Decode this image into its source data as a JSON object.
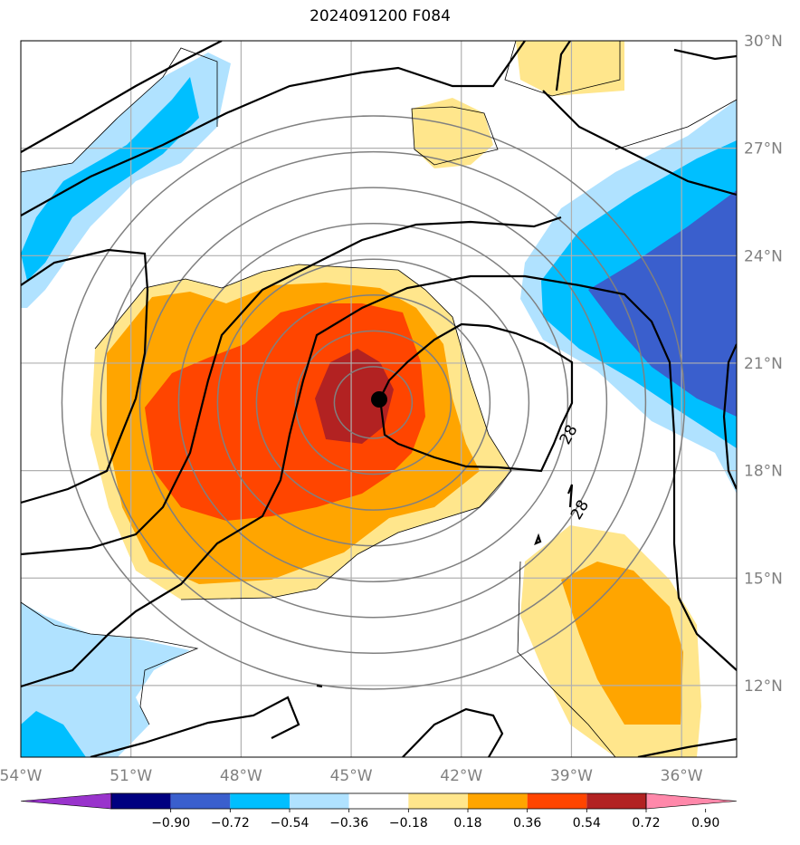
{
  "title": "2024091200 F084",
  "chart_data": {
    "type": "heatmap",
    "title": "2024091200 F084",
    "map": {
      "lon_range": [
        -54,
        -34.5
      ],
      "lat_range": [
        10,
        30
      ],
      "lon_ticks": [
        -54,
        -51,
        -48,
        -45,
        -42,
        -39,
        -36
      ],
      "lon_tick_labels": [
        "54°W",
        "51°W",
        "48°W",
        "45°W",
        "42°W",
        "39°W",
        "36°W"
      ],
      "lat_ticks": [
        12,
        15,
        18,
        21,
        24,
        27,
        30
      ],
      "lat_tick_labels": [
        "12°N",
        "15°N",
        "18°N",
        "21°N",
        "24°N",
        "27°N",
        "30°N"
      ],
      "grid": true,
      "storm_center": {
        "lon": -44.4,
        "lat": 19.9
      },
      "range_rings_deg": [
        1,
        2,
        3,
        4,
        5,
        6,
        7,
        8
      ]
    },
    "colorbar": {
      "position": "bottom",
      "extend": "both",
      "levels": [
        -0.9,
        -0.72,
        -0.54,
        -0.36,
        -0.18,
        0.18,
        0.36,
        0.54,
        0.72,
        0.9
      ],
      "tick_labels": [
        "−0.90",
        "−0.72",
        "−0.54",
        "−0.36",
        "−0.18",
        "0.18",
        "0.36",
        "0.54",
        "0.72",
        "0.90"
      ],
      "colors": [
        "#9933cc",
        "#000080",
        "#3a5fcd",
        "#00bfff",
        "#b0e2ff",
        "#ffffff",
        "#ffe68c",
        "#ffa500",
        "#ff4500",
        "#b22222",
        "#ff88aa"
      ]
    },
    "contours": {
      "labeled_values": [
        28,
        28
      ]
    }
  }
}
